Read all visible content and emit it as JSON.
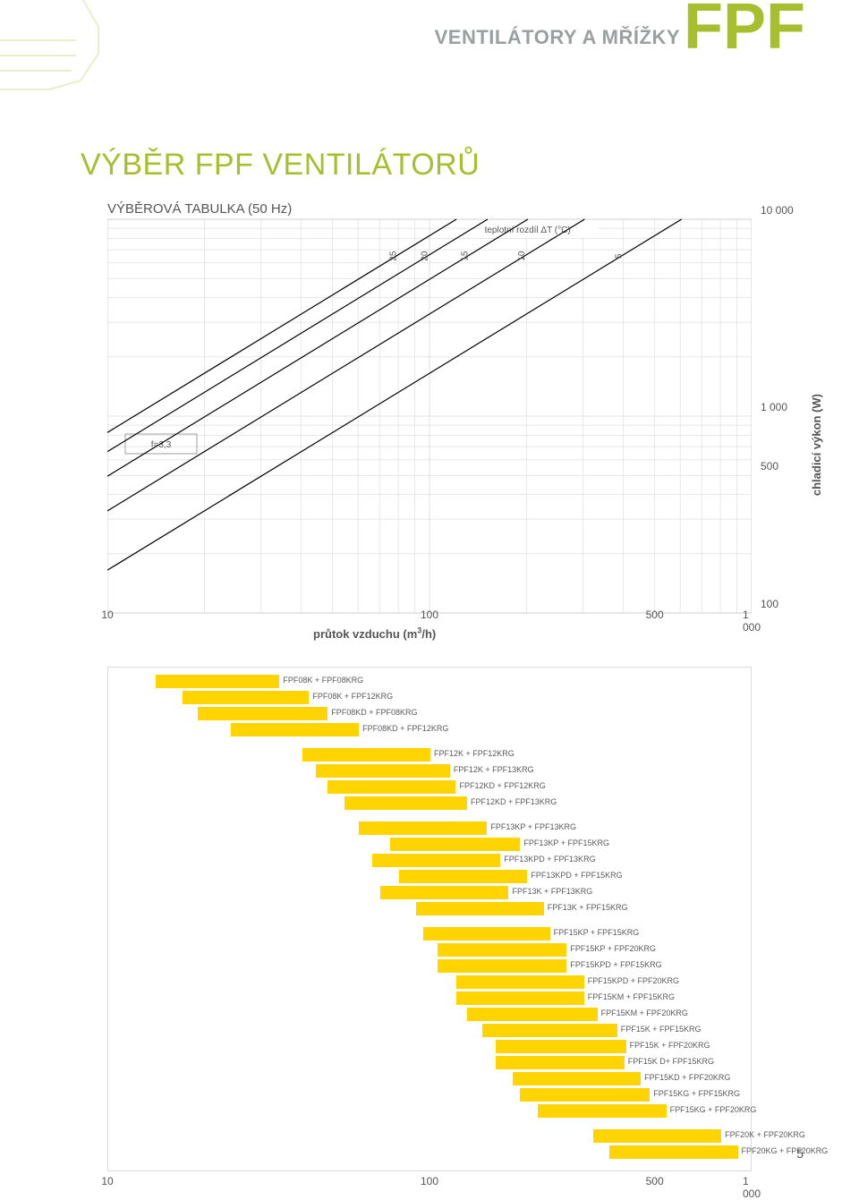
{
  "header": {
    "small": "VENTILÁTORY A MŘÍŽKY",
    "big": "FPF"
  },
  "title": "VÝBĚR FPF VENTILÁTORŮ",
  "subtitle": "VÝBĚROVÁ TABULKA (50 Hz)",
  "page_number": "5",
  "chart": {
    "type": "log-log-line",
    "x_axis_title_html": "průtok vzduchu (m³/h)",
    "y_axis_title": "chladicí výkon (W)",
    "f_label": "f=3,3",
    "dt_label": "teplotní rozdíl ΔT (°C)",
    "x_min": 10,
    "x_max": 1000,
    "y_min": 100,
    "y_max": 10000,
    "x_ticks": [
      "10",
      "100",
      "500",
      "1 000"
    ],
    "x_tick_values": [
      10,
      100,
      500,
      1000
    ],
    "y_ticks_right": [
      "10 000",
      "1 000",
      "500",
      "100"
    ],
    "y_tick_values": [
      10000,
      1000,
      500,
      100
    ],
    "curve_labels": [
      "25",
      "20",
      "15",
      "10",
      "5"
    ],
    "curve_dt_values": [
      25,
      20,
      15,
      10,
      5
    ],
    "colors": {
      "grid": "#d9d9d9",
      "curves": "#000000",
      "border": "#cfcfcf",
      "background": "#ffffff"
    }
  },
  "bars": {
    "type": "range-bar",
    "x_min": 10,
    "x_max": 1000,
    "x_ticks": [
      "10",
      "100",
      "500",
      "1 000"
    ],
    "x_tick_values": [
      10,
      100,
      500,
      1000
    ],
    "bar_color": "#ffd400",
    "text_color": "#5a5a5a",
    "items": [
      {
        "label": "FPF08K + FPF08KRG",
        "lo": 14,
        "hi": 34
      },
      {
        "label": "FPF08K + FPF12KRG",
        "lo": 17,
        "hi": 42
      },
      {
        "label": "FPF08KD + FPF08KRG",
        "lo": 19,
        "hi": 48
      },
      {
        "label": "FPF08KD + FPF12KRG",
        "lo": 24,
        "hi": 60
      },
      {
        "label": "FPF12K + FPF12KRG",
        "lo": 40,
        "hi": 100,
        "gap_before": true
      },
      {
        "label": "FPF12K + FPF13KRG",
        "lo": 44,
        "hi": 115
      },
      {
        "label": "FPF12KD + FPF12KRG",
        "lo": 48,
        "hi": 120
      },
      {
        "label": "FPF12KD + FPF13KRG",
        "lo": 54,
        "hi": 130
      },
      {
        "label": "FPF13KP + FPF13KRG",
        "lo": 60,
        "hi": 150,
        "gap_before": true
      },
      {
        "label": "FPF13KP + FPF15KRG",
        "lo": 75,
        "hi": 190
      },
      {
        "label": "FPF13KPD + FPF13KRG",
        "lo": 66,
        "hi": 165
      },
      {
        "label": "FPF13KPD + FPF15KRG",
        "lo": 80,
        "hi": 200
      },
      {
        "label": "FPF13K + FPF13KRG",
        "lo": 70,
        "hi": 175
      },
      {
        "label": "FPF13K + FPF15KRG",
        "lo": 90,
        "hi": 225
      },
      {
        "label": "FPF15KP + FPF15KRG",
        "lo": 95,
        "hi": 235,
        "gap_before": true
      },
      {
        "label": "FPF15KP + FPF20KRG",
        "lo": 105,
        "hi": 265
      },
      {
        "label": "FPF15KPD + FPF15KRG",
        "lo": 105,
        "hi": 265
      },
      {
        "label": "FPF15KPD + FPF20KRG",
        "lo": 120,
        "hi": 300
      },
      {
        "label": "FPF15KM + FPF15KRG",
        "lo": 120,
        "hi": 300
      },
      {
        "label": "FPF15KM + FPF20KRG",
        "lo": 130,
        "hi": 330
      },
      {
        "label": "FPF15K + FPF15KRG",
        "lo": 145,
        "hi": 380
      },
      {
        "label": "FPF15K + FPF20KRG",
        "lo": 160,
        "hi": 405
      },
      {
        "label": "FPF15K D+ FPF15KRG",
        "lo": 160,
        "hi": 400
      },
      {
        "label": "FPF15KD + FPF20KRG",
        "lo": 180,
        "hi": 450
      },
      {
        "label": "FPF15KG + FPF15KRG",
        "lo": 190,
        "hi": 480
      },
      {
        "label": "FPF15KG + FPF20KRG",
        "lo": 215,
        "hi": 540
      },
      {
        "label": "FPF20K + FPF20KRG",
        "lo": 320,
        "hi": 800,
        "gap_before": true
      },
      {
        "label": "FPF20KG + FPF20KRG",
        "lo": 360,
        "hi": 900
      }
    ]
  }
}
